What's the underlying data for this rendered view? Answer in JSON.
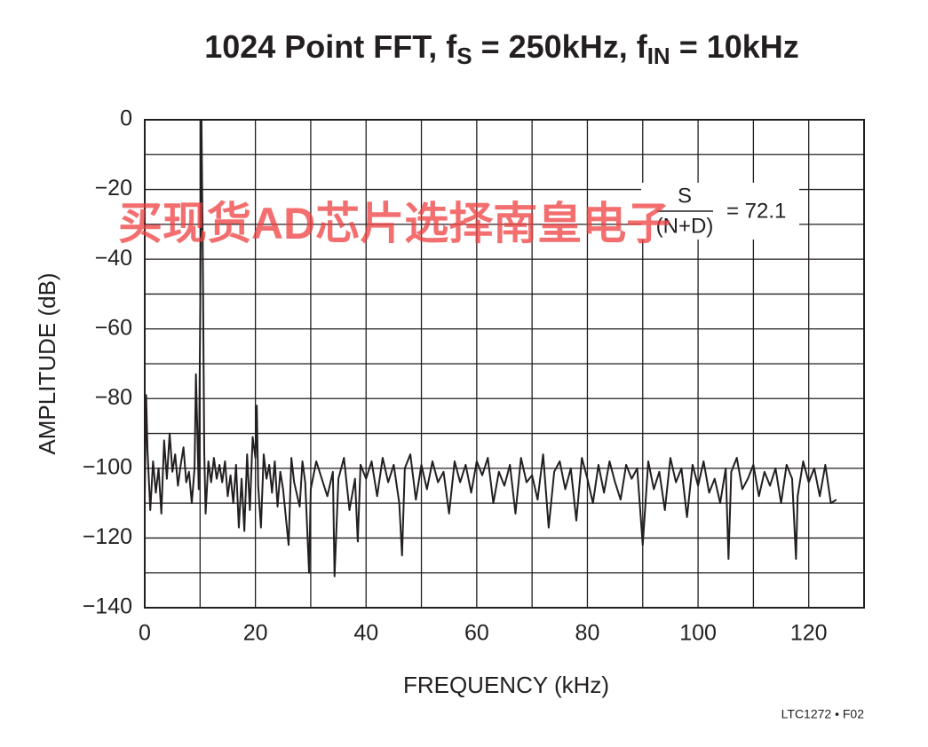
{
  "chart_data": {
    "type": "line",
    "title_parts": [
      "1024 Point FFT, f",
      "S",
      " = 250kHz, f",
      "IN",
      " = 10kHz"
    ],
    "xlabel": "FREQUENCY (kHz)",
    "ylabel": "AMPLITUDE (dB)",
    "annotation": {
      "numerator": "S",
      "denominator": "(N+D)",
      "value_text": "= 72.1"
    },
    "watermark": "买现货AD芯片选择南皇电子",
    "footer": "LTC1272 • F02",
    "xlim": [
      0,
      130
    ],
    "ylim": [
      -140,
      0
    ],
    "xticks": [
      0,
      20,
      40,
      60,
      80,
      100,
      120
    ],
    "yticks": [
      {
        "value": 0,
        "label": "0"
      },
      {
        "value": -20,
        "label": "−20"
      },
      {
        "value": -40,
        "label": "−40"
      },
      {
        "value": -60,
        "label": "−60"
      },
      {
        "value": -80,
        "label": "−80"
      },
      {
        "value": -100,
        "label": "−100"
      },
      {
        "value": -120,
        "label": "−120"
      },
      {
        "value": -140,
        "label": "−140"
      }
    ],
    "xgrid": [
      0,
      10,
      20,
      30,
      40,
      50,
      60,
      70,
      80,
      90,
      100,
      110,
      120,
      130
    ],
    "ygrid": [
      0,
      -10,
      -20,
      -30,
      -40,
      -50,
      -60,
      -70,
      -80,
      -90,
      -100,
      -110,
      -120,
      -130,
      -140
    ],
    "grid": true,
    "series": [
      {
        "color": "#231f20",
        "x": [
          0,
          0.25,
          0.5,
          1,
          1.5,
          2,
          2.5,
          3,
          3.5,
          4,
          4.5,
          5,
          5.5,
          6,
          6.5,
          7,
          7.5,
          8,
          8.5,
          9,
          9.25,
          9.5,
          9.75,
          10,
          10.25,
          10.5,
          10.75,
          11,
          11.5,
          12,
          12.5,
          13,
          13.5,
          14,
          14.5,
          15,
          15.5,
          16,
          16.5,
          17,
          17.5,
          18,
          18.5,
          19,
          19.5,
          20,
          20.25,
          20.5,
          21,
          21.5,
          22,
          22.5,
          23,
          23.5,
          24,
          24.5,
          25,
          26,
          26.5,
          27,
          28,
          28.5,
          29,
          29.7,
          30,
          31,
          32,
          33,
          34,
          34.3,
          35,
          36,
          37,
          38,
          38.5,
          39,
          40,
          41,
          42,
          43,
          44,
          45,
          46,
          46.5,
          47,
          48,
          49,
          50,
          51,
          52,
          53,
          54,
          55,
          56,
          57,
          58,
          59,
          60,
          61,
          62,
          63,
          64,
          65,
          66,
          67,
          68,
          69,
          70,
          71,
          72,
          73,
          74,
          75,
          76,
          77,
          78,
          79,
          80,
          81,
          82,
          83,
          84,
          85,
          86,
          87,
          88,
          89,
          90,
          91,
          92,
          93,
          94,
          95,
          96,
          97,
          98,
          99,
          100,
          101,
          102,
          103,
          104,
          105,
          105.5,
          106,
          107,
          108,
          109,
          110,
          111,
          112,
          113,
          114,
          115,
          116,
          117,
          117.7,
          118,
          119,
          120,
          121,
          122,
          123,
          124,
          125
        ],
        "values": [
          -108,
          -79,
          -95,
          -112,
          -98,
          -107,
          -100,
          -113,
          -92,
          -103,
          -90,
          -101,
          -96,
          -105,
          -99,
          -94,
          -104,
          -101,
          -110,
          -100,
          -73,
          -89,
          -106,
          -60,
          0,
          -40,
          -95,
          -113,
          -98,
          -104,
          -97,
          -103,
          -99,
          -104,
          -98,
          -108,
          -102,
          -110,
          -99,
          -117,
          -103,
          -118,
          -96,
          -112,
          -91,
          -97,
          -82,
          -105,
          -117,
          -96,
          -103,
          -99,
          -107,
          -98,
          -111,
          -101,
          -106,
          -122,
          -97,
          -104,
          -111,
          -98,
          -104,
          -130,
          -106,
          -98,
          -103,
          -108,
          -101,
          -131,
          -103,
          -97,
          -112,
          -103,
          -121,
          -99,
          -103,
          -98,
          -108,
          -97,
          -104,
          -99,
          -110,
          -125,
          -100,
          -96,
          -109,
          -99,
          -106,
          -98,
          -104,
          -101,
          -113,
          -98,
          -104,
          -99,
          -107,
          -98,
          -102,
          -97,
          -110,
          -101,
          -105,
          -99,
          -113,
          -97,
          -104,
          -102,
          -109,
          -96,
          -117,
          -101,
          -98,
          -106,
          -100,
          -115,
          -97,
          -103,
          -110,
          -99,
          -107,
          -98,
          -104,
          -109,
          -99,
          -103,
          -100,
          -122,
          -98,
          -106,
          -101,
          -112,
          -97,
          -104,
          -100,
          -114,
          -99,
          -105,
          -98,
          -107,
          -103,
          -110,
          -100,
          -126,
          -101,
          -97,
          -106,
          -103,
          -99,
          -108,
          -101,
          -105,
          -100,
          -110,
          -99,
          -103,
          -126,
          -108,
          -98,
          -104,
          -100,
          -108,
          -99,
          -110,
          -109
        ]
      }
    ]
  }
}
